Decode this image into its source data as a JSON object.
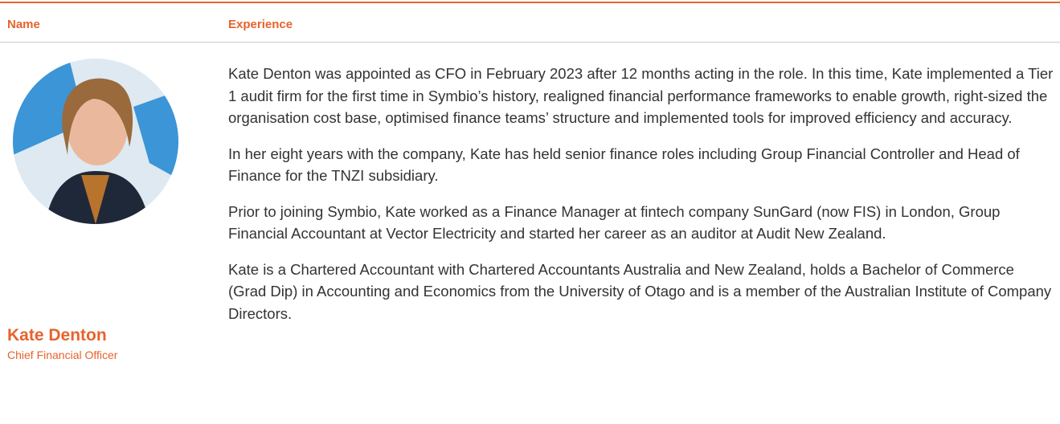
{
  "table": {
    "headers": [
      "Name",
      "Experience"
    ],
    "person": {
      "name": "Kate Denton",
      "role": "Chief Financial Officer"
    },
    "paragraphs": [
      "Kate Denton was appointed as CFO in February 2023 after 12 months acting in the role. In this time, Kate implemented a Tier 1 audit firm for the first time in Symbio’s history, realigned financial performance frameworks to enable growth, right-sized the organisation cost base, optimised finance teams’ structure and implemented tools for improved efficiency and accuracy.",
      "In her eight years with the company, Kate has held senior finance roles including Group Financial Controller and Head of Finance for the TNZI subsidiary.",
      "Prior to joining Symbio, Kate worked as a Finance Manager at fintech company SunGard (now FIS) in London, Group Financial Accountant at Vector Electricity and started her career as an auditor at Audit New Zealand.",
      "Kate is a Chartered Accountant with Chartered Accountants Australia and New Zealand, holds a Bachelor of Commerce (Grad Dip) in Accounting and Economics from the University of Otago and is a member of the Australian Institute of Company Directors."
    ]
  }
}
